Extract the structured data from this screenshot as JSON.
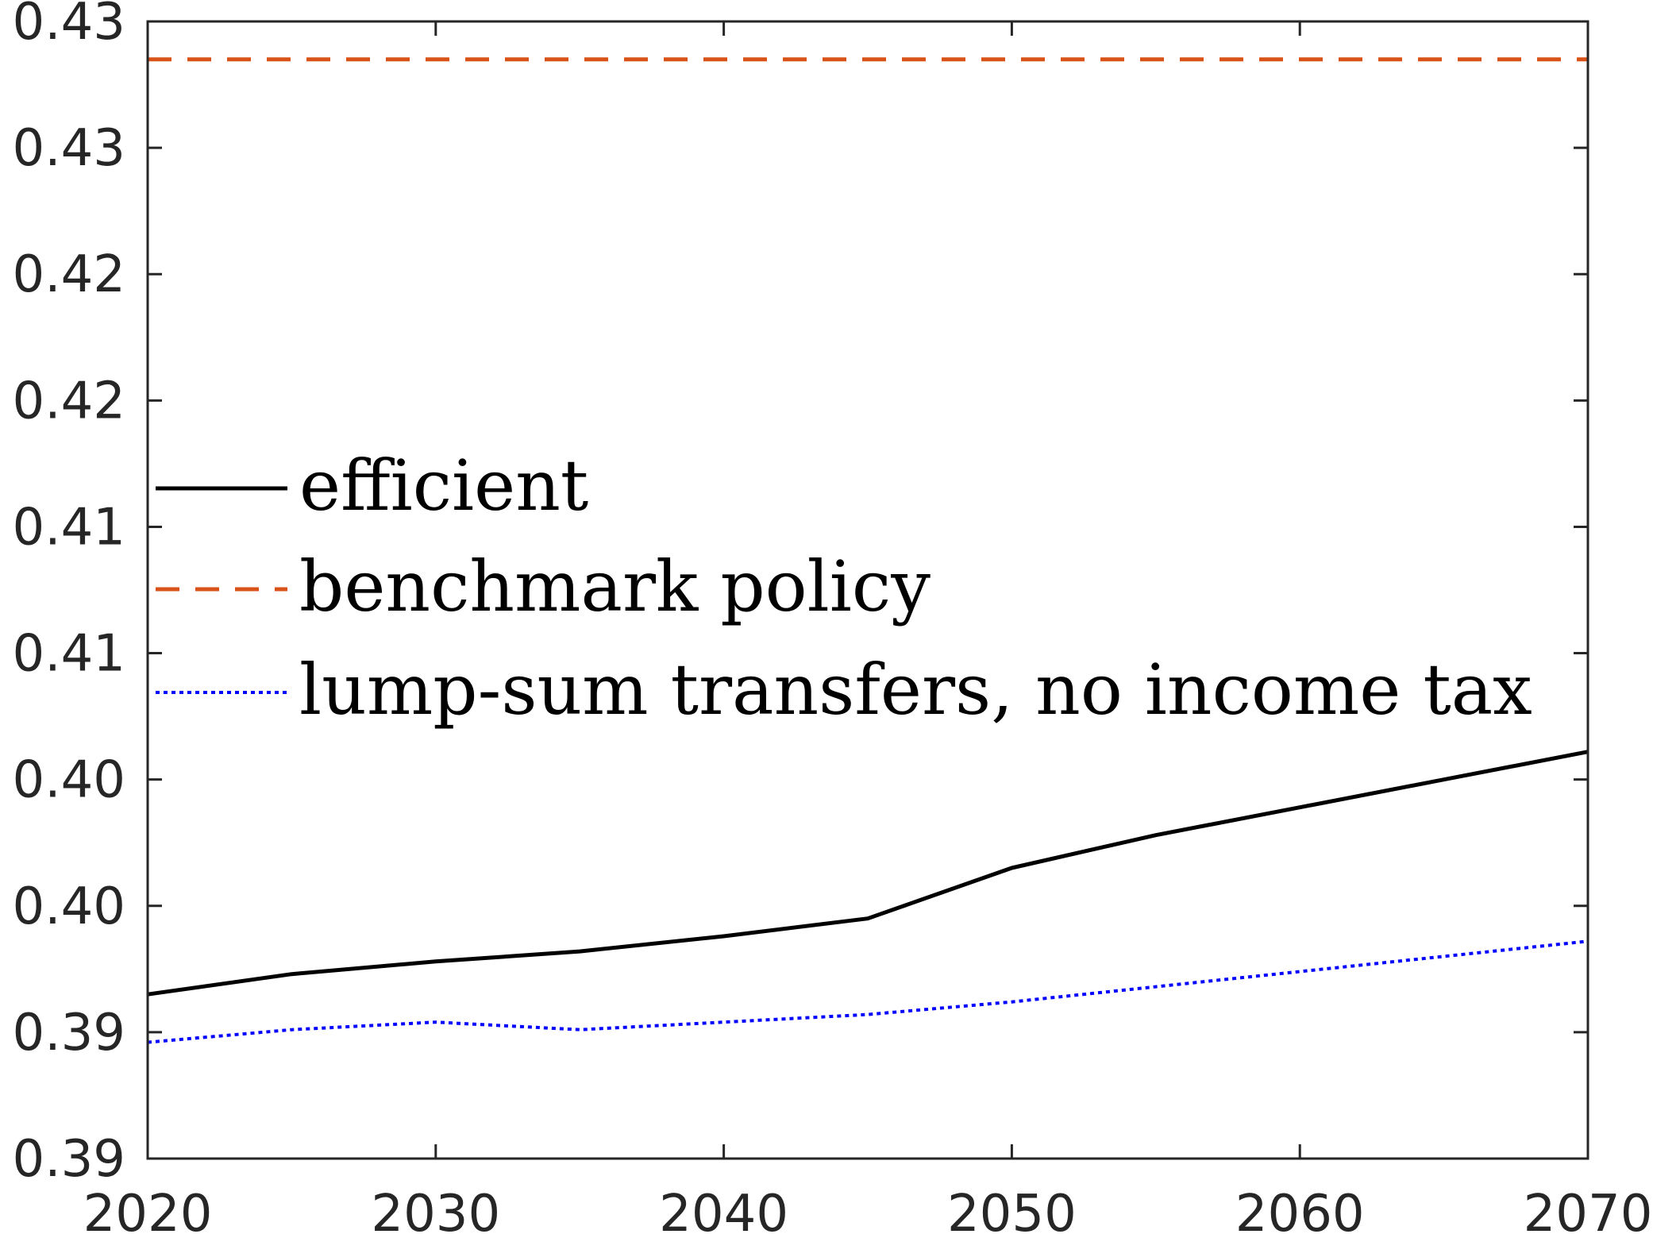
{
  "chart_data": {
    "type": "line",
    "title": "",
    "xlabel": "",
    "ylabel": "",
    "xlim": [
      2020,
      2070
    ],
    "ylim": [
      0.3875,
      0.4325
    ],
    "x_ticks": [
      2020,
      2030,
      2040,
      2050,
      2060,
      2070
    ],
    "x_tick_labels": [
      "2020",
      "2030",
      "2040",
      "2050",
      "2060",
      "2070"
    ],
    "y_ticks": [
      0.3875,
      0.3925,
      0.3975,
      0.4025,
      0.4075,
      0.4125,
      0.4175,
      0.4225,
      0.4275,
      0.4325
    ],
    "y_tick_labels": [
      "0.39",
      "0.39",
      "0.40",
      "0.40",
      "0.41",
      "0.41",
      "0.42",
      "0.42",
      "0.43",
      "0.43"
    ],
    "grid": false,
    "legend_position": "center-left",
    "series": [
      {
        "name": "efficient",
        "color": "#000000",
        "style": "solid",
        "x": [
          2020,
          2025,
          2030,
          2035,
          2040,
          2045,
          2050,
          2055,
          2060,
          2065,
          2070
        ],
        "y": [
          0.394,
          0.3948,
          0.3953,
          0.3957,
          0.3963,
          0.397,
          0.399,
          0.4003,
          0.4014,
          0.4025,
          0.4036
        ]
      },
      {
        "name": "benchmark policy",
        "color": "#D95319",
        "style": "dashed",
        "x": [
          2020,
          2070
        ],
        "y": [
          0.431,
          0.431
        ]
      },
      {
        "name": "lump-sum transfers, no income tax",
        "color": "#0000FF",
        "style": "dotted",
        "x": [
          2020,
          2025,
          2030,
          2035,
          2040,
          2045,
          2050,
          2055,
          2060,
          2065,
          2070
        ],
        "y": [
          0.3921,
          0.3926,
          0.3929,
          0.3926,
          0.3929,
          0.3932,
          0.3937,
          0.3943,
          0.3949,
          0.3955,
          0.3961
        ]
      }
    ]
  }
}
